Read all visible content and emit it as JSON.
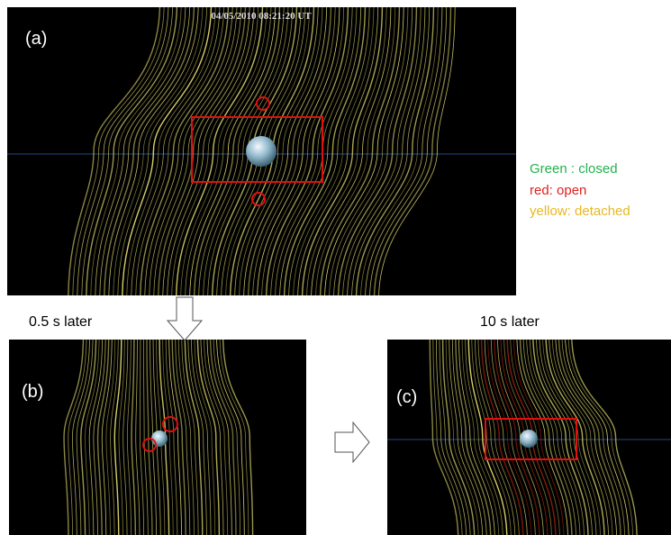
{
  "panels": [
    {
      "label": "(a)",
      "timestamp": "04/05/2010 08:21:20 UT"
    },
    {
      "label": "(b)",
      "caption": "0.5 s  later"
    },
    {
      "label": "(c)",
      "caption": "10 s  later"
    }
  ],
  "legend": [
    "Green : closed",
    "red: open",
    "yellow: detached"
  ]
}
